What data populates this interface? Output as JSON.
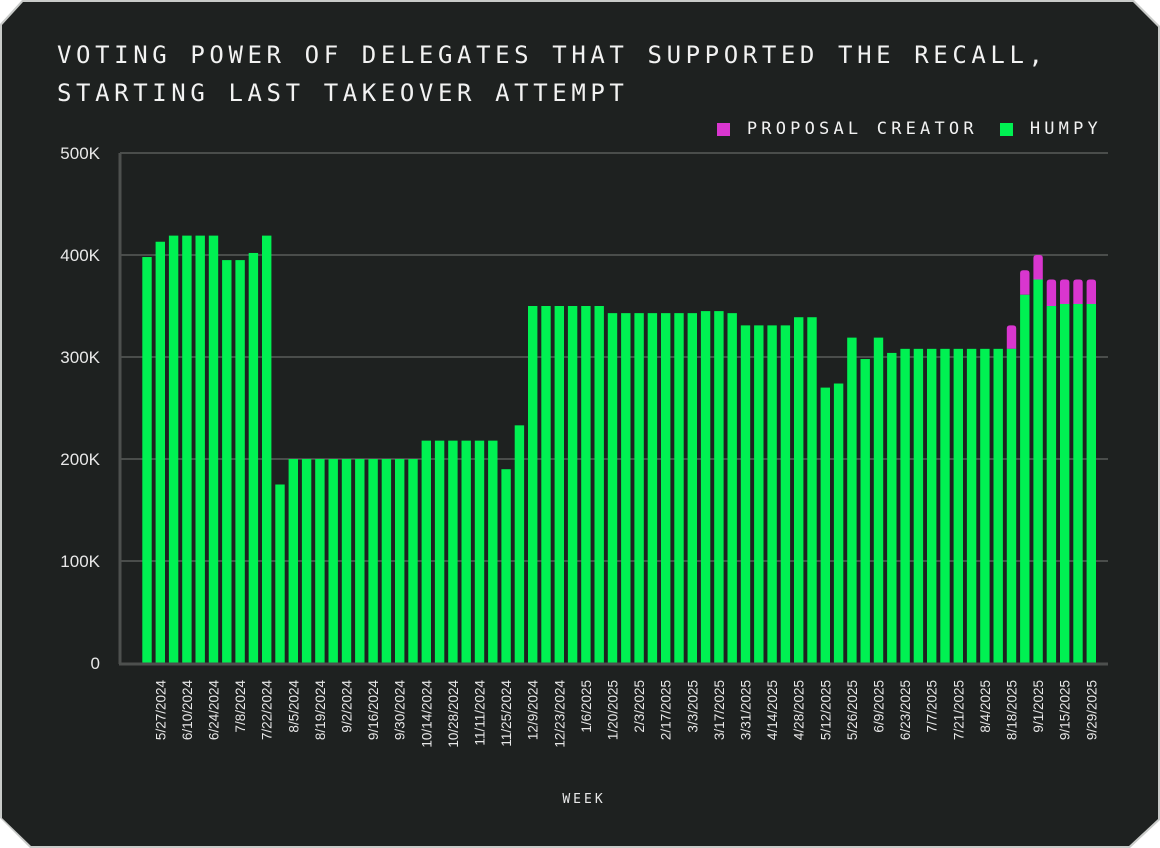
{
  "chart_data": {
    "type": "bar",
    "stacked": true,
    "title_lines": [
      "VOTING POWER OF DELEGATES THAT SUPPORTED THE RECALL,",
      "STARTING LAST TAKEOVER ATTEMPT"
    ],
    "xlabel": "WEEK",
    "ylabel": "",
    "ylim": [
      0,
      500000
    ],
    "yticks": [
      0,
      100000,
      200000,
      300000,
      400000,
      500000
    ],
    "ytick_labels": [
      "0",
      "100K",
      "200K",
      "300K",
      "400K",
      "500K"
    ],
    "grid": true,
    "legend_position": "top-right",
    "legend": [
      {
        "name": "PROPOSAL CREATOR",
        "color": "#d936cf"
      },
      {
        "name": "HUMPY",
        "color": "#00f152"
      }
    ],
    "categories": [
      "5/20/2024",
      "5/27/2024",
      "6/3/2024",
      "6/10/2024",
      "6/17/2024",
      "6/24/2024",
      "7/1/2024",
      "7/8/2024",
      "7/15/2024",
      "7/22/2024",
      "7/29/2024",
      "8/5/2024",
      "8/12/2024",
      "8/19/2024",
      "8/26/2024",
      "9/2/2024",
      "9/9/2024",
      "9/16/2024",
      "9/23/2024",
      "9/30/2024",
      "10/7/2024",
      "10/14/2024",
      "10/21/2024",
      "10/28/2024",
      "11/4/2024",
      "11/11/2024",
      "11/18/2024",
      "11/25/2024",
      "12/2/2024",
      "12/9/2024",
      "12/16/2024",
      "12/23/2024",
      "12/30/2024",
      "1/6/2025",
      "1/13/2025",
      "1/20/2025",
      "1/27/2025",
      "2/3/2025",
      "2/10/2025",
      "2/17/2025",
      "2/24/2025",
      "3/3/2025",
      "3/10/2025",
      "3/17/2025",
      "3/24/2025",
      "3/31/2025",
      "4/7/2025",
      "4/14/2025",
      "4/21/2025",
      "4/28/2025",
      "5/5/2025",
      "5/12/2025",
      "5/19/2025",
      "5/26/2025",
      "6/2/2025",
      "6/9/2025",
      "6/16/2025",
      "6/23/2025",
      "6/30/2025",
      "7/7/2025",
      "7/14/2025",
      "7/21/2025",
      "7/28/2025",
      "8/4/2025",
      "8/11/2025",
      "8/18/2025",
      "8/25/2025",
      "9/1/2025",
      "9/8/2025",
      "9/15/2025",
      "9/22/2025",
      "9/29/2025"
    ],
    "labeled_every": 2,
    "labeled_offset": 1,
    "series": [
      {
        "name": "HUMPY",
        "color": "#00f152",
        "values": [
          398000,
          413000,
          419000,
          419000,
          419000,
          419000,
          395000,
          395000,
          402000,
          419000,
          175000,
          200000,
          200000,
          200000,
          200000,
          200000,
          200000,
          200000,
          200000,
          200000,
          200000,
          218000,
          218000,
          218000,
          218000,
          218000,
          218000,
          190000,
          233000,
          350000,
          350000,
          350000,
          350000,
          350000,
          350000,
          343000,
          343000,
          343000,
          343000,
          343000,
          343000,
          343000,
          345000,
          345000,
          343000,
          331000,
          331000,
          331000,
          331000,
          339000,
          339000,
          270000,
          274000,
          319000,
          298000,
          319000,
          304000,
          308000,
          308000,
          308000,
          308000,
          308000,
          308000,
          308000,
          308000,
          308000,
          361000,
          376000,
          350000,
          352000,
          352000,
          352000
        ]
      },
      {
        "name": "PROPOSAL CREATOR",
        "color": "#d936cf",
        "values": [
          0,
          0,
          0,
          0,
          0,
          0,
          0,
          0,
          0,
          0,
          0,
          0,
          0,
          0,
          0,
          0,
          0,
          0,
          0,
          0,
          0,
          0,
          0,
          0,
          0,
          0,
          0,
          0,
          0,
          0,
          0,
          0,
          0,
          0,
          0,
          0,
          0,
          0,
          0,
          0,
          0,
          0,
          0,
          0,
          0,
          0,
          0,
          0,
          0,
          0,
          0,
          0,
          0,
          0,
          0,
          0,
          0,
          0,
          0,
          0,
          0,
          0,
          0,
          0,
          0,
          23000,
          24000,
          24000,
          26000,
          24000,
          24000,
          24000
        ]
      }
    ]
  }
}
